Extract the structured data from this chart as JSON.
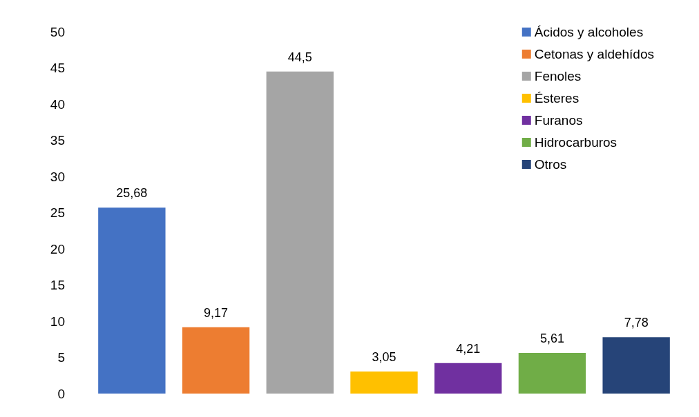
{
  "chart_data": {
    "type": "bar",
    "categories": [
      null,
      null,
      null,
      null,
      null,
      null,
      null
    ],
    "stacked": true,
    "series": [
      {
        "name": "Ácidos y alcoholes",
        "color": "#4472c4",
        "values": [
          25.68,
          null,
          null,
          null,
          null,
          null,
          null
        ],
        "value_labels": [
          "25,68",
          null,
          null,
          null,
          null,
          null,
          null
        ]
      },
      {
        "name": "Cetonas y aldehídos",
        "color": "#ed7d31",
        "values": [
          null,
          9.17,
          null,
          null,
          null,
          null,
          null
        ],
        "value_labels": [
          null,
          "9,17",
          null,
          null,
          null,
          null,
          null
        ]
      },
      {
        "name": "Fenoles",
        "color": "#a5a5a5",
        "values": [
          null,
          null,
          44.5,
          null,
          null,
          null,
          null
        ],
        "value_labels": [
          null,
          null,
          "44,5",
          null,
          null,
          null,
          null
        ]
      },
      {
        "name": "Ésteres",
        "color": "#ffc000",
        "values": [
          null,
          null,
          null,
          3.05,
          null,
          null,
          null
        ],
        "value_labels": [
          null,
          null,
          null,
          "3,05",
          null,
          null,
          null
        ]
      },
      {
        "name": "Furanos",
        "color": "#7030a0",
        "values": [
          null,
          null,
          null,
          null,
          4.21,
          null,
          null
        ],
        "value_labels": [
          null,
          null,
          null,
          null,
          "4,21",
          null,
          null
        ]
      },
      {
        "name": "Hidrocarburos",
        "color": "#70ad47",
        "values": [
          null,
          null,
          null,
          null,
          null,
          5.61,
          null
        ],
        "value_labels": [
          null,
          null,
          null,
          null,
          null,
          "5,61",
          null
        ]
      },
      {
        "name": "Otros",
        "color": "#264478",
        "values": [
          null,
          null,
          null,
          null,
          null,
          null,
          7.78
        ],
        "value_labels": [
          null,
          null,
          null,
          null,
          null,
          null,
          "7,78"
        ]
      }
    ],
    "ylim": [
      0,
      50
    ],
    "yticks": [
      0,
      5,
      10,
      15,
      20,
      25,
      30,
      35,
      40,
      45,
      50
    ],
    "tick_labels": "y",
    "grid": false,
    "legend": "top right"
  }
}
